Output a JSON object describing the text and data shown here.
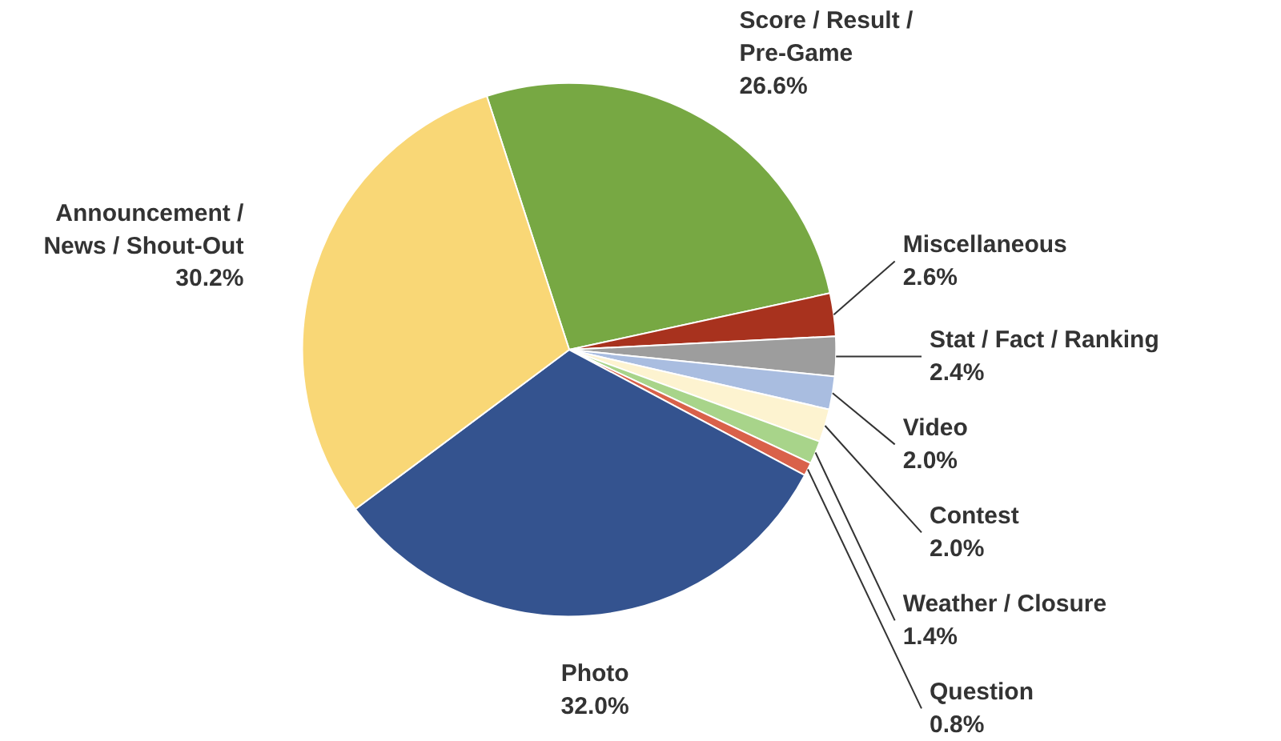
{
  "chart_data": {
    "type": "pie",
    "categories": [
      "Score / Result / Pre-Game",
      "Miscellaneous",
      "Stat / Fact / Ranking",
      "Video",
      "Contest",
      "Weather / Closure",
      "Question",
      "Photo",
      "Announcement / News / Shout-Out"
    ],
    "values": [
      26.6,
      2.6,
      2.4,
      2.0,
      2.0,
      1.4,
      0.8,
      32.0,
      30.2
    ],
    "value_labels": [
      "26.6%",
      "2.6%",
      "2.4%",
      "2.0%",
      "2.0%",
      "1.4%",
      "0.8%",
      "32.0%",
      "30.2%"
    ],
    "colors": [
      "#77a843",
      "#a8321e",
      "#9d9d9d",
      "#a9bde0",
      "#fdf3d0",
      "#a8d48a",
      "#d9614a",
      "#34538f",
      "#f9d776"
    ]
  }
}
